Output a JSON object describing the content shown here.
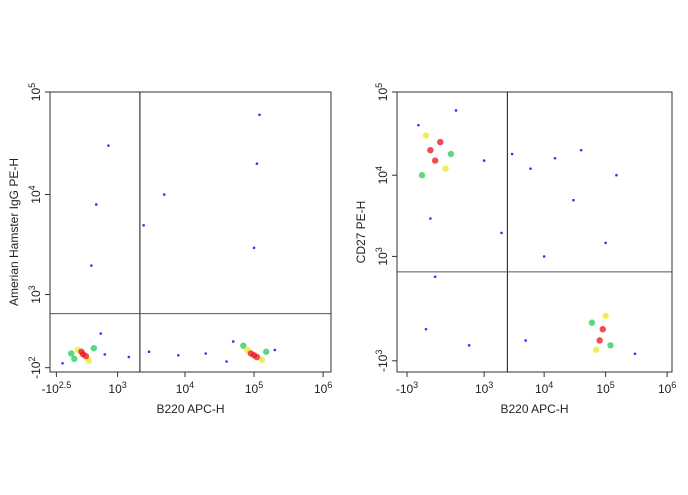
{
  "chart_data": [
    {
      "type": "scatter",
      "xlabel": "B220 APC-H",
      "ylabel": "Amerian Hamster IgG PE-H",
      "xscale": "asinh",
      "yscale": "asinh",
      "xlim": [
        -450,
        1300000
      ],
      "ylim": [
        -150,
        100000
      ],
      "xticks": [
        {
          "value": -316,
          "label": "-10",
          "exponent": "2.5"
        },
        {
          "value": 1000,
          "label": "10",
          "exponent": "3"
        },
        {
          "value": 10000,
          "label": "10",
          "exponent": "4"
        },
        {
          "value": 100000,
          "label": "10",
          "exponent": "5"
        },
        {
          "value": 1000000,
          "label": "10",
          "exponent": "6"
        }
      ],
      "yticks": [
        {
          "value": -100,
          "label": "-10",
          "exponent": "2"
        },
        {
          "value": 1000,
          "label": "10",
          "exponent": "3"
        },
        {
          "value": 10000,
          "label": "10",
          "exponent": "4"
        },
        {
          "value": 100000,
          "label": "10",
          "exponent": "5"
        }
      ],
      "gates": {
        "x": 2200,
        "y": 600
      },
      "series": [
        {
          "color": "#1a1aff",
          "x": [
            600,
            1500,
            3000,
            8000,
            20000,
            40000,
            500,
            100000,
            110000,
            120000,
            400,
            700,
            300,
            2500,
            5000,
            -200,
            50000,
            200000
          ],
          "y": [
            50,
            20,
            80,
            40,
            60,
            -30,
            300,
            3000,
            20000,
            60000,
            8000,
            30000,
            2000,
            5000,
            10000,
            -50,
            200,
            100
          ]
        },
        {
          "color": "#22cc55",
          "x": [
            0,
            350,
            -50,
            70000,
            150000
          ],
          "y": [
            0,
            120,
            60,
            150,
            80
          ]
        },
        {
          "color": "#e8e820",
          "x": [
            60,
            250,
            80000,
            130000
          ],
          "y": [
            100,
            -20,
            100,
            -10
          ]
        },
        {
          "color": "#ee1111",
          "x": [
            150,
            200,
            120,
            100000,
            110000,
            90000
          ],
          "y": [
            50,
            30,
            80,
            40,
            20,
            60
          ]
        }
      ]
    },
    {
      "type": "scatter",
      "xlabel": "B220 APC-H",
      "ylabel": "CD27 PE-H",
      "xscale": "asinh",
      "yscale": "asinh",
      "xlim": [
        -1500,
        1200000
      ],
      "ylim": [
        -1400,
        100000
      ],
      "xticks": [
        {
          "value": -1000,
          "label": "-10",
          "exponent": "3"
        },
        {
          "value": 1000,
          "label": "10",
          "exponent": "3"
        },
        {
          "value": 10000,
          "label": "10",
          "exponent": "4"
        },
        {
          "value": 100000,
          "label": "10",
          "exponent": "5"
        },
        {
          "value": 1000000,
          "label": "10",
          "exponent": "6"
        }
      ],
      "yticks": [
        {
          "value": -1000,
          "label": "-10",
          "exponent": "3"
        },
        {
          "value": 1000,
          "label": "10",
          "exponent": "3"
        },
        {
          "value": 10000,
          "label": "10",
          "exponent": "4"
        },
        {
          "value": 100000,
          "label": "10",
          "exponent": "5"
        }
      ],
      "gates": {
        "x": 2500,
        "y": 600
      },
      "series": [
        {
          "color": "#1a1aff",
          "x": [
            1000,
            3000,
            6000,
            15000,
            40000,
            -300,
            -200,
            -400,
            500,
            2000,
            10000,
            30000,
            100000,
            5000,
            -600,
            200,
            150000,
            300000
          ],
          "y": [
            15000,
            18000,
            12000,
            16000,
            20000,
            3000,
            500,
            -300,
            -600,
            2000,
            1000,
            5000,
            1500,
            -500,
            40000,
            60000,
            10000,
            -800
          ]
        },
        {
          "color": "#22cc55",
          "x": [
            100,
            -500,
            60000,
            120000
          ],
          "y": [
            18000,
            10000,
            -200,
            -600
          ]
        },
        {
          "color": "#e8e820",
          "x": [
            -400,
            0,
            70000,
            100000
          ],
          "y": [
            30000,
            12000,
            -700,
            -100
          ]
        },
        {
          "color": "#ee1111",
          "x": [
            -300,
            -200,
            -100,
            80000,
            90000
          ],
          "y": [
            20000,
            15000,
            25000,
            -500,
            -300
          ]
        }
      ]
    }
  ]
}
